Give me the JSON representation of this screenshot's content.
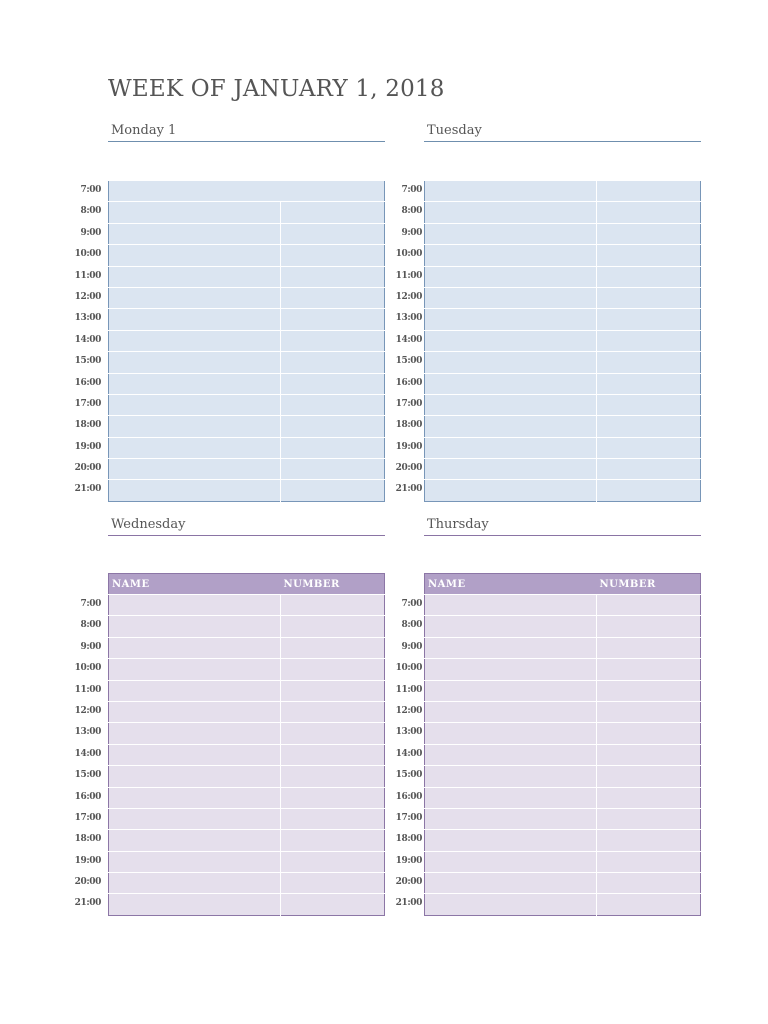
{
  "page": {
    "title": "WEEK OF JANUARY 1, 2018"
  },
  "hours": [
    "7:00",
    "8:00",
    "9:00",
    "10:00",
    "11:00",
    "12:00",
    "13:00",
    "14:00",
    "15:00",
    "16:00",
    "17:00",
    "18:00",
    "19:00",
    "20:00",
    "21:00"
  ],
  "days": [
    {
      "name": "Monday 1",
      "theme": "blue",
      "has_header": false,
      "split_from_row": 1
    },
    {
      "name": "Tuesday",
      "theme": "blue",
      "has_header": false,
      "split_from_row": 0
    },
    {
      "name": "Wednesday",
      "theme": "purple",
      "has_header": true,
      "split_from_row": 0
    },
    {
      "name": "Thursday",
      "theme": "purple",
      "has_header": true,
      "split_from_row": 0
    }
  ],
  "table_header": {
    "name": "NAME",
    "number": "NUMBER"
  },
  "colors": {
    "blue_fill": "#dbe5f1",
    "blue_line": "#7896b8",
    "purple_fill": "#e5dfec",
    "purple_header": "#b1a0c7",
    "purple_line": "#8c76a6"
  }
}
